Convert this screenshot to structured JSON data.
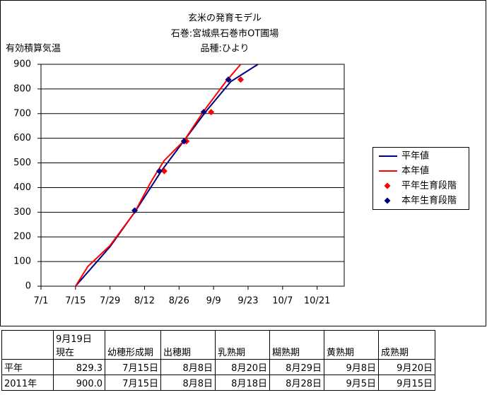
{
  "chart_data": {
    "type": "line",
    "title": [
      "玄米の発育モデル",
      "石巻:宮城県石巻市OT圃場",
      "品種:ひより"
    ],
    "ylabel": "有効積算気温",
    "xlim": [
      "7/1",
      "11/1"
    ],
    "xticks": [
      "7/1",
      "7/15",
      "7/29",
      "8/12",
      "8/26",
      "9/9",
      "9/23",
      "10/7",
      "10/21"
    ],
    "ylim": [
      0,
      900
    ],
    "yticks": [
      0,
      100,
      200,
      300,
      400,
      500,
      600,
      700,
      800,
      900
    ],
    "grid": true,
    "legend": "right",
    "series": [
      {
        "name": "平年値",
        "color": "#000080",
        "kind": "line",
        "x": [
          "7/15",
          "7/22",
          "7/29",
          "8/8",
          "8/19",
          "8/28",
          "9/6",
          "9/16",
          "9/27"
        ],
        "values": [
          0,
          80,
          160,
          300,
          470,
          590,
          710,
          830,
          900
        ]
      },
      {
        "name": "本年値",
        "color": "#ff0000",
        "kind": "line",
        "x": [
          "7/15",
          "7/20",
          "7/29",
          "8/8",
          "8/15",
          "8/20",
          "8/28",
          "9/5",
          "9/14",
          "9/20"
        ],
        "values": [
          0,
          80,
          165,
          300,
          430,
          510,
          590,
          710,
          830,
          900
        ]
      },
      {
        "name": "平年生育段階",
        "color": "#ff0000",
        "kind": "marker",
        "x": [
          "8/20",
          "8/29",
          "9/8",
          "9/20"
        ],
        "values": [
          467,
          588,
          706,
          838
        ]
      },
      {
        "name": "本年生育段階",
        "color": "#000080",
        "kind": "marker",
        "x": [
          "8/8",
          "8/18",
          "8/28",
          "9/5",
          "9/15"
        ],
        "values": [
          307,
          467,
          588,
          706,
          838
        ]
      }
    ]
  },
  "table": {
    "header": [
      "",
      "9月19日\n現在",
      "幼穂形成期",
      "出穂期",
      "乳熟期",
      "糊熟期",
      "黄熟期",
      "成熟期"
    ],
    "rows": [
      [
        "平年",
        "829.3",
        "7月15日",
        "8月8日",
        "8月20日",
        "8月29日",
        "9月8日",
        "9月20日"
      ],
      [
        "2011年",
        "900.0",
        "7月15日",
        "8月8日",
        "8月18日",
        "8月28日",
        "9月5日",
        "9月15日"
      ]
    ]
  }
}
